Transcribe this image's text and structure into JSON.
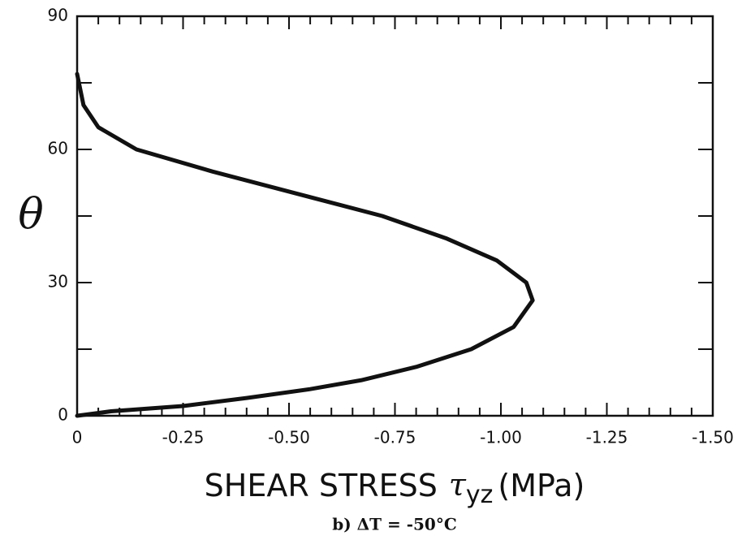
{
  "chart_data": {
    "type": "line",
    "xlabel": {
      "text": "SHEAR STRESS",
      "symbol": "τ",
      "subscript": "yz",
      "unit": "(MPa)"
    },
    "ylabel": "θ",
    "caption": "b) ΔT = -50°C",
    "x": [
      0,
      -0.08,
      -0.25,
      -0.4,
      -0.55,
      -0.67,
      -0.8,
      -0.93,
      -1.03,
      -1.075,
      -1.06,
      -0.99,
      -0.87,
      -0.72,
      -0.52,
      -0.32,
      -0.14,
      -0.05,
      -0.015,
      0
    ],
    "series": [
      {
        "color": "#111111",
        "values": [
          0,
          1,
          2.2,
          4,
          6,
          8,
          11,
          15,
          20,
          26,
          30,
          35,
          40,
          45,
          50,
          55,
          60,
          65,
          70,
          77
        ]
      }
    ],
    "xlim": [
      0,
      -1.5
    ],
    "xticks": [
      0,
      -0.25,
      {
        "value": -0.5,
        "label": "-0.50"
      },
      -0.75,
      {
        "value": -1,
        "label": "-1.00"
      },
      -1.25,
      {
        "value": -1.5,
        "label": "-1.50"
      }
    ],
    "xminorticks": [
      -0.05,
      -0.1,
      -0.15,
      -0.2,
      -0.3,
      -0.35,
      -0.4,
      -0.45,
      -0.55,
      -0.6,
      -0.65,
      -0.7,
      -0.8,
      -0.85,
      -0.9,
      -0.95,
      -1.05,
      -1.1,
      -1.15,
      -1.2,
      -1.3,
      -1.35,
      -1.4,
      -1.45
    ],
    "ylim": [
      0,
      90
    ],
    "yticks": [
      0,
      30,
      60,
      90
    ],
    "yminorticks": [
      15,
      45,
      75
    ]
  }
}
